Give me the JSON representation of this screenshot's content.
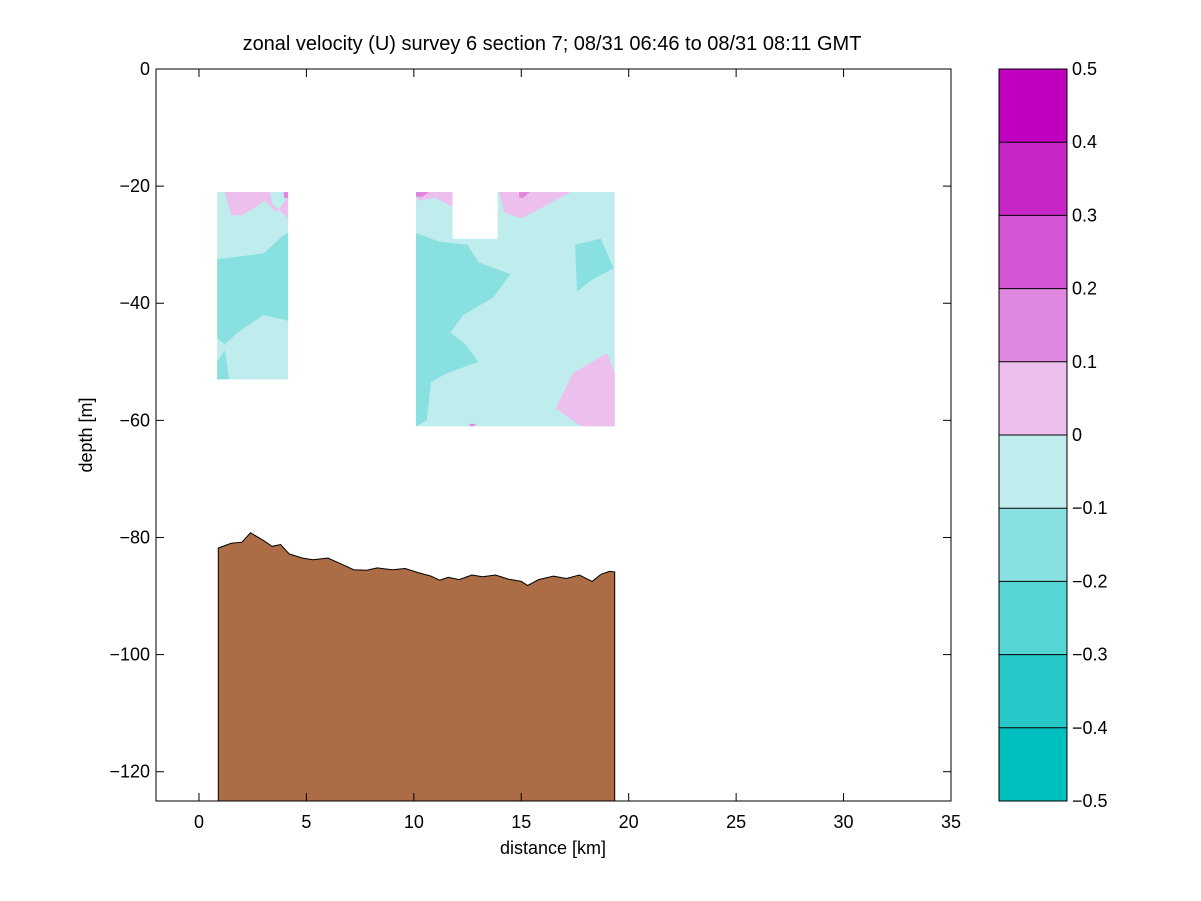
{
  "chart_data": {
    "type": "heatmap",
    "title": "zonal velocity (U) survey 6 section 7; 08/31 06:46 to 08/31 08:11 GMT",
    "xlabel": "distance [km]",
    "ylabel": "depth [m]",
    "xlim": [
      -2,
      35
    ],
    "ylim": [
      -125,
      0
    ],
    "x_ticks": [
      0,
      5,
      10,
      15,
      20,
      25,
      30,
      35
    ],
    "x_tick_labels": [
      "0",
      "5",
      "10",
      "15",
      "20",
      "25",
      "30",
      "35"
    ],
    "y_ticks": [
      0,
      -20,
      -40,
      -60,
      -80,
      -100,
      -120
    ],
    "y_tick_labels": [
      "0",
      "−20",
      "−40",
      "−60",
      "−80",
      "−100",
      "−120"
    ],
    "colorbar": {
      "range": [
        -0.5,
        0.5
      ],
      "levels": [
        -0.5,
        -0.4,
        -0.3,
        -0.2,
        -0.1,
        0,
        0.1,
        0.2,
        0.3,
        0.4,
        0.5
      ],
      "tick_labels": [
        "−0.5",
        "−0.4",
        "−0.3",
        "−0.2",
        "−0.1",
        "0",
        "0.1",
        "0.2",
        "0.3",
        "0.4",
        "0.5"
      ],
      "colors": [
        "#00bfbf",
        "#26c8c8",
        "#55d5d5",
        "#88e0e0",
        "#bfecec",
        "#ecbfec",
        "#e088e0",
        "#d555d5",
        "#c826c8",
        "#bf00bf"
      ]
    },
    "regions": [
      {
        "value_band": [
          -0.1,
          0
        ],
        "color": "#bfecec",
        "points": [
          [
            0.85,
            -21
          ],
          [
            4.15,
            -21
          ],
          [
            4.15,
            -53
          ],
          [
            0.85,
            -53
          ]
        ]
      },
      {
        "value_band": [
          -0.2,
          -0.1
        ],
        "color": "#88e0e0",
        "points": [
          [
            0.85,
            -32.5
          ],
          [
            3.0,
            -31.5
          ],
          [
            3.9,
            -28.5
          ],
          [
            4.15,
            -28
          ],
          [
            4.15,
            -43
          ],
          [
            3.0,
            -42
          ],
          [
            1.8,
            -45
          ],
          [
            1.2,
            -47
          ],
          [
            0.85,
            -46
          ]
        ]
      },
      {
        "value_band": [
          -0.2,
          -0.1
        ],
        "color": "#88e0e0",
        "points": [
          [
            0.85,
            -50
          ],
          [
            1.2,
            -48
          ],
          [
            1.4,
            -53
          ],
          [
            0.85,
            -53
          ]
        ]
      },
      {
        "value_band": [
          0,
          0.1
        ],
        "color": "#ecbfec",
        "points": [
          [
            1.2,
            -21
          ],
          [
            3.3,
            -21
          ],
          [
            3.4,
            -23
          ],
          [
            4.15,
            -25.5
          ],
          [
            4.15,
            -21
          ],
          [
            4.1,
            -21
          ],
          [
            4.1,
            -22
          ],
          [
            3.6,
            -24.5
          ],
          [
            3.1,
            -22.5
          ],
          [
            2.0,
            -25
          ],
          [
            1.5,
            -25
          ]
        ]
      },
      {
        "value_band": [
          0.1,
          0.2
        ],
        "color": "#e088e0",
        "points": [
          [
            3.95,
            -21
          ],
          [
            4.15,
            -21
          ],
          [
            4.15,
            -22
          ],
          [
            3.95,
            -22
          ]
        ]
      },
      {
        "value_band": [
          -0.1,
          0
        ],
        "color": "#bfecec",
        "points": [
          [
            10.1,
            -21
          ],
          [
            11.8,
            -21
          ],
          [
            11.8,
            -29
          ],
          [
            13.9,
            -29
          ],
          [
            13.9,
            -21
          ],
          [
            19.35,
            -21
          ],
          [
            19.35,
            -61
          ],
          [
            10.1,
            -61
          ]
        ]
      },
      {
        "value_band": [
          -0.2,
          -0.1
        ],
        "color": "#88e0e0",
        "points": [
          [
            10.1,
            -28
          ],
          [
            11.2,
            -29.5
          ],
          [
            12.5,
            -30
          ],
          [
            13.0,
            -33
          ],
          [
            14.5,
            -35
          ],
          [
            13.7,
            -39
          ],
          [
            12.3,
            -42
          ],
          [
            11.7,
            -45
          ],
          [
            12.4,
            -47
          ],
          [
            13.0,
            -50
          ],
          [
            11.5,
            -52
          ],
          [
            10.8,
            -53.5
          ],
          [
            10.6,
            -60
          ],
          [
            10.1,
            -61
          ]
        ]
      },
      {
        "value_band": [
          -0.2,
          -0.1
        ],
        "color": "#88e0e0",
        "points": [
          [
            17.5,
            -30
          ],
          [
            18.7,
            -29
          ],
          [
            19.3,
            -34
          ],
          [
            18.3,
            -36
          ],
          [
            17.6,
            -38
          ]
        ]
      },
      {
        "value_band": [
          0,
          0.1
        ],
        "color": "#ecbfec",
        "points": [
          [
            10.1,
            -21
          ],
          [
            11.8,
            -21
          ],
          [
            11.8,
            -23.5
          ],
          [
            11.0,
            -22
          ],
          [
            10.2,
            -22.5
          ]
        ]
      },
      {
        "value_band": [
          0,
          0.1
        ],
        "color": "#ecbfec",
        "points": [
          [
            14.0,
            -21
          ],
          [
            17.3,
            -21
          ],
          [
            15.8,
            -24
          ],
          [
            15.0,
            -25.5
          ],
          [
            14.2,
            -24.5
          ],
          [
            14.0,
            -21.5
          ]
        ]
      },
      {
        "value_band": [
          0,
          0.1
        ],
        "color": "#ecbfec",
        "points": [
          [
            17.4,
            -52
          ],
          [
            19.0,
            -48.5
          ],
          [
            19.35,
            -52
          ],
          [
            19.35,
            -61
          ],
          [
            17.8,
            -61
          ],
          [
            16.6,
            -58
          ],
          [
            17.0,
            -55
          ]
        ]
      },
      {
        "value_band": [
          0.1,
          0.2
        ],
        "color": "#e088e0",
        "points": [
          [
            10.1,
            -21
          ],
          [
            10.7,
            -21
          ],
          [
            10.4,
            -21.8
          ],
          [
            10.1,
            -21.8
          ]
        ]
      },
      {
        "value_band": [
          0.1,
          0.2
        ],
        "color": "#e088e0",
        "points": [
          [
            14.9,
            -21
          ],
          [
            15.4,
            -21
          ],
          [
            15.1,
            -22
          ],
          [
            14.9,
            -22
          ]
        ]
      },
      {
        "value_band": [
          0.1,
          0.2
        ],
        "color": "#e088e0",
        "points": [
          [
            12.6,
            -60.6
          ],
          [
            12.9,
            -60.6
          ],
          [
            12.8,
            -61
          ],
          [
            12.6,
            -61
          ]
        ]
      }
    ],
    "bathymetry": {
      "color": "#ab6c46",
      "points": [
        [
          0.9,
          -81.8
        ],
        [
          1.5,
          -81
        ],
        [
          2.0,
          -80.8
        ],
        [
          2.4,
          -79.2
        ],
        [
          3.0,
          -80.5
        ],
        [
          3.4,
          -81.5
        ],
        [
          3.8,
          -81.2
        ],
        [
          4.2,
          -82.8
        ],
        [
          4.8,
          -83.5
        ],
        [
          5.3,
          -83.8
        ],
        [
          6.0,
          -83.5
        ],
        [
          6.6,
          -84.5
        ],
        [
          7.2,
          -85.5
        ],
        [
          7.8,
          -85.6
        ],
        [
          8.3,
          -85.2
        ],
        [
          9.0,
          -85.5
        ],
        [
          9.6,
          -85.3
        ],
        [
          10.2,
          -86.0
        ],
        [
          10.8,
          -86.6
        ],
        [
          11.2,
          -87.3
        ],
        [
          11.6,
          -86.8
        ],
        [
          12.1,
          -87.2
        ],
        [
          12.7,
          -86.4
        ],
        [
          13.2,
          -86.7
        ],
        [
          13.8,
          -86.4
        ],
        [
          14.4,
          -87.1
        ],
        [
          15.0,
          -87.5
        ],
        [
          15.3,
          -88.2
        ],
        [
          15.8,
          -87.2
        ],
        [
          16.5,
          -86.6
        ],
        [
          17.1,
          -87.0
        ],
        [
          17.7,
          -86.4
        ],
        [
          18.3,
          -87.5
        ],
        [
          18.7,
          -86.3
        ],
        [
          19.1,
          -85.8
        ],
        [
          19.35,
          -85.9
        ],
        [
          19.35,
          -125
        ],
        [
          0.9,
          -125
        ]
      ]
    }
  }
}
